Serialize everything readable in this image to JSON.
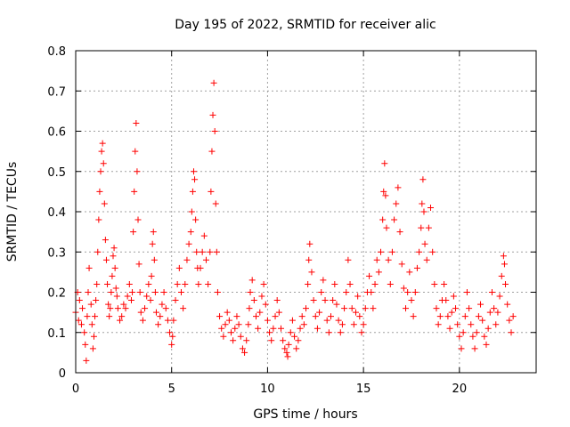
{
  "chart_data": {
    "type": "scatter",
    "title": "Day 195 of 2022, SRMTID for receiver alic",
    "xlabel": "GPS time / hours",
    "ylabel": "SRMTID / TECUs",
    "xlim": [
      0,
      24
    ],
    "ylim": [
      0,
      0.8
    ],
    "xticks": [
      0,
      5,
      10,
      15,
      20
    ],
    "xtick_labels": [
      "0",
      "5",
      "10",
      "15",
      "20"
    ],
    "yticks": [
      0,
      0.1,
      0.2,
      0.3,
      0.4,
      0.5,
      0.6,
      0.7,
      0.8
    ],
    "ytick_labels": [
      "0",
      "0.1",
      "0.2",
      "0.3",
      "0.4",
      "0.5",
      "0.6",
      "0.7",
      "0.8"
    ],
    "grid": true,
    "marker": "+",
    "color": "#ff0000",
    "series": [
      {
        "name": "SRMTID",
        "points": [
          [
            0.0,
            0.15
          ],
          [
            0.1,
            0.2
          ],
          [
            0.15,
            0.13
          ],
          [
            0.2,
            0.18
          ],
          [
            0.3,
            0.12
          ],
          [
            0.35,
            0.16
          ],
          [
            0.45,
            0.1
          ],
          [
            0.5,
            0.07
          ],
          [
            0.55,
            0.03
          ],
          [
            0.6,
            0.14
          ],
          [
            0.65,
            0.2
          ],
          [
            0.7,
            0.26
          ],
          [
            0.8,
            0.17
          ],
          [
            0.85,
            0.12
          ],
          [
            0.9,
            0.06
          ],
          [
            0.95,
            0.09
          ],
          [
            1.0,
            0.14
          ],
          [
            1.05,
            0.18
          ],
          [
            1.1,
            0.22
          ],
          [
            1.15,
            0.3
          ],
          [
            1.2,
            0.38
          ],
          [
            1.25,
            0.45
          ],
          [
            1.3,
            0.5
          ],
          [
            1.35,
            0.55
          ],
          [
            1.4,
            0.57
          ],
          [
            1.45,
            0.52
          ],
          [
            1.5,
            0.42
          ],
          [
            1.55,
            0.33
          ],
          [
            1.6,
            0.28
          ],
          [
            1.65,
            0.22
          ],
          [
            1.7,
            0.17
          ],
          [
            1.75,
            0.14
          ],
          [
            1.8,
            0.16
          ],
          [
            1.85,
            0.2
          ],
          [
            1.9,
            0.24
          ],
          [
            1.95,
            0.29
          ],
          [
            2.0,
            0.31
          ],
          [
            2.05,
            0.26
          ],
          [
            2.1,
            0.21
          ],
          [
            2.15,
            0.19
          ],
          [
            2.2,
            0.16
          ],
          [
            2.3,
            0.13
          ],
          [
            2.4,
            0.14
          ],
          [
            2.5,
            0.17
          ],
          [
            2.6,
            0.16
          ],
          [
            2.7,
            0.19
          ],
          [
            2.8,
            0.22
          ],
          [
            2.9,
            0.18
          ],
          [
            2.95,
            0.2
          ],
          [
            3.0,
            0.35
          ],
          [
            3.05,
            0.45
          ],
          [
            3.1,
            0.55
          ],
          [
            3.15,
            0.62
          ],
          [
            3.2,
            0.5
          ],
          [
            3.25,
            0.38
          ],
          [
            3.3,
            0.27
          ],
          [
            3.35,
            0.2
          ],
          [
            3.4,
            0.15
          ],
          [
            3.5,
            0.13
          ],
          [
            3.6,
            0.16
          ],
          [
            3.7,
            0.19
          ],
          [
            3.8,
            0.22
          ],
          [
            3.9,
            0.18
          ],
          [
            3.95,
            0.24
          ],
          [
            4.0,
            0.32
          ],
          [
            4.05,
            0.35
          ],
          [
            4.1,
            0.28
          ],
          [
            4.15,
            0.2
          ],
          [
            4.2,
            0.15
          ],
          [
            4.3,
            0.12
          ],
          [
            4.4,
            0.14
          ],
          [
            4.5,
            0.17
          ],
          [
            4.6,
            0.2
          ],
          [
            4.7,
            0.16
          ],
          [
            4.8,
            0.13
          ],
          [
            4.9,
            0.1
          ],
          [
            5.0,
            0.07
          ],
          [
            5.05,
            0.09
          ],
          [
            5.1,
            0.13
          ],
          [
            5.2,
            0.18
          ],
          [
            5.3,
            0.22
          ],
          [
            5.4,
            0.26
          ],
          [
            5.5,
            0.2
          ],
          [
            5.6,
            0.16
          ],
          [
            5.7,
            0.22
          ],
          [
            5.8,
            0.28
          ],
          [
            5.9,
            0.32
          ],
          [
            6.0,
            0.35
          ],
          [
            6.05,
            0.4
          ],
          [
            6.1,
            0.45
          ],
          [
            6.15,
            0.5
          ],
          [
            6.2,
            0.48
          ],
          [
            6.25,
            0.38
          ],
          [
            6.3,
            0.3
          ],
          [
            6.35,
            0.26
          ],
          [
            6.4,
            0.22
          ],
          [
            6.5,
            0.26
          ],
          [
            6.6,
            0.3
          ],
          [
            6.7,
            0.34
          ],
          [
            6.8,
            0.28
          ],
          [
            6.9,
            0.22
          ],
          [
            7.0,
            0.3
          ],
          [
            7.05,
            0.45
          ],
          [
            7.1,
            0.55
          ],
          [
            7.15,
            0.64
          ],
          [
            7.2,
            0.72
          ],
          [
            7.25,
            0.6
          ],
          [
            7.3,
            0.42
          ],
          [
            7.35,
            0.3
          ],
          [
            7.4,
            0.2
          ],
          [
            7.5,
            0.14
          ],
          [
            7.6,
            0.11
          ],
          [
            7.7,
            0.09
          ],
          [
            7.8,
            0.12
          ],
          [
            7.9,
            0.15
          ],
          [
            8.0,
            0.13
          ],
          [
            8.1,
            0.1
          ],
          [
            8.2,
            0.08
          ],
          [
            8.3,
            0.11
          ],
          [
            8.4,
            0.14
          ],
          [
            8.5,
            0.12
          ],
          [
            8.6,
            0.09
          ],
          [
            8.7,
            0.06
          ],
          [
            8.8,
            0.05
          ],
          [
            8.9,
            0.08
          ],
          [
            9.0,
            0.12
          ],
          [
            9.05,
            0.16
          ],
          [
            9.1,
            0.2
          ],
          [
            9.2,
            0.23
          ],
          [
            9.3,
            0.18
          ],
          [
            9.4,
            0.14
          ],
          [
            9.5,
            0.11
          ],
          [
            9.6,
            0.15
          ],
          [
            9.7,
            0.19
          ],
          [
            9.8,
            0.22
          ],
          [
            9.9,
            0.17
          ],
          [
            10.0,
            0.13
          ],
          [
            10.1,
            0.1
          ],
          [
            10.2,
            0.08
          ],
          [
            10.3,
            0.11
          ],
          [
            10.4,
            0.14
          ],
          [
            10.5,
            0.18
          ],
          [
            10.6,
            0.15
          ],
          [
            10.7,
            0.11
          ],
          [
            10.8,
            0.08
          ],
          [
            10.9,
            0.06
          ],
          [
            11.0,
            0.05
          ],
          [
            11.05,
            0.04
          ],
          [
            11.1,
            0.07
          ],
          [
            11.2,
            0.1
          ],
          [
            11.3,
            0.13
          ],
          [
            11.4,
            0.09
          ],
          [
            11.5,
            0.06
          ],
          [
            11.6,
            0.08
          ],
          [
            11.7,
            0.11
          ],
          [
            11.8,
            0.14
          ],
          [
            11.9,
            0.12
          ],
          [
            12.0,
            0.16
          ],
          [
            12.1,
            0.22
          ],
          [
            12.15,
            0.28
          ],
          [
            12.2,
            0.32
          ],
          [
            12.3,
            0.25
          ],
          [
            12.4,
            0.18
          ],
          [
            12.5,
            0.14
          ],
          [
            12.6,
            0.11
          ],
          [
            12.7,
            0.15
          ],
          [
            12.8,
            0.2
          ],
          [
            12.9,
            0.23
          ],
          [
            13.0,
            0.18
          ],
          [
            13.1,
            0.13
          ],
          [
            13.2,
            0.1
          ],
          [
            13.3,
            0.14
          ],
          [
            13.4,
            0.18
          ],
          [
            13.5,
            0.22
          ],
          [
            13.6,
            0.17
          ],
          [
            13.7,
            0.13
          ],
          [
            13.8,
            0.1
          ],
          [
            13.9,
            0.12
          ],
          [
            14.0,
            0.16
          ],
          [
            14.1,
            0.2
          ],
          [
            14.2,
            0.28
          ],
          [
            14.3,
            0.22
          ],
          [
            14.4,
            0.16
          ],
          [
            14.5,
            0.12
          ],
          [
            14.6,
            0.15
          ],
          [
            14.7,
            0.19
          ],
          [
            14.8,
            0.14
          ],
          [
            14.9,
            0.1
          ],
          [
            15.0,
            0.12
          ],
          [
            15.1,
            0.16
          ],
          [
            15.2,
            0.2
          ],
          [
            15.3,
            0.24
          ],
          [
            15.4,
            0.2
          ],
          [
            15.5,
            0.16
          ],
          [
            15.6,
            0.22
          ],
          [
            15.7,
            0.28
          ],
          [
            15.8,
            0.25
          ],
          [
            15.9,
            0.3
          ],
          [
            16.0,
            0.38
          ],
          [
            16.05,
            0.45
          ],
          [
            16.1,
            0.52
          ],
          [
            16.15,
            0.44
          ],
          [
            16.2,
            0.36
          ],
          [
            16.3,
            0.28
          ],
          [
            16.4,
            0.22
          ],
          [
            16.5,
            0.3
          ],
          [
            16.6,
            0.38
          ],
          [
            16.7,
            0.42
          ],
          [
            16.8,
            0.46
          ],
          [
            16.9,
            0.35
          ],
          [
            17.0,
            0.27
          ],
          [
            17.1,
            0.21
          ],
          [
            17.2,
            0.16
          ],
          [
            17.3,
            0.2
          ],
          [
            17.4,
            0.25
          ],
          [
            17.5,
            0.18
          ],
          [
            17.6,
            0.14
          ],
          [
            17.7,
            0.2
          ],
          [
            17.8,
            0.26
          ],
          [
            17.9,
            0.3
          ],
          [
            18.0,
            0.36
          ],
          [
            18.05,
            0.42
          ],
          [
            18.1,
            0.48
          ],
          [
            18.15,
            0.4
          ],
          [
            18.2,
            0.32
          ],
          [
            18.3,
            0.28
          ],
          [
            18.4,
            0.36
          ],
          [
            18.5,
            0.41
          ],
          [
            18.6,
            0.3
          ],
          [
            18.7,
            0.22
          ],
          [
            18.8,
            0.16
          ],
          [
            18.9,
            0.12
          ],
          [
            19.0,
            0.14
          ],
          [
            19.1,
            0.18
          ],
          [
            19.2,
            0.22
          ],
          [
            19.3,
            0.18
          ],
          [
            19.4,
            0.14
          ],
          [
            19.5,
            0.11
          ],
          [
            19.6,
            0.15
          ],
          [
            19.7,
            0.19
          ],
          [
            19.8,
            0.16
          ],
          [
            19.9,
            0.12
          ],
          [
            20.0,
            0.09
          ],
          [
            20.1,
            0.06
          ],
          [
            20.2,
            0.1
          ],
          [
            20.3,
            0.14
          ],
          [
            20.4,
            0.2
          ],
          [
            20.5,
            0.16
          ],
          [
            20.6,
            0.12
          ],
          [
            20.7,
            0.09
          ],
          [
            20.8,
            0.06
          ],
          [
            20.9,
            0.1
          ],
          [
            21.0,
            0.14
          ],
          [
            21.1,
            0.17
          ],
          [
            21.2,
            0.13
          ],
          [
            21.3,
            0.09
          ],
          [
            21.4,
            0.07
          ],
          [
            21.5,
            0.11
          ],
          [
            21.6,
            0.15
          ],
          [
            21.7,
            0.2
          ],
          [
            21.8,
            0.16
          ],
          [
            21.9,
            0.12
          ],
          [
            22.0,
            0.15
          ],
          [
            22.1,
            0.19
          ],
          [
            22.2,
            0.24
          ],
          [
            22.3,
            0.29
          ],
          [
            22.35,
            0.27
          ],
          [
            22.4,
            0.22
          ],
          [
            22.5,
            0.17
          ],
          [
            22.6,
            0.13
          ],
          [
            22.7,
            0.1
          ],
          [
            22.8,
            0.14
          ]
        ]
      }
    ]
  }
}
